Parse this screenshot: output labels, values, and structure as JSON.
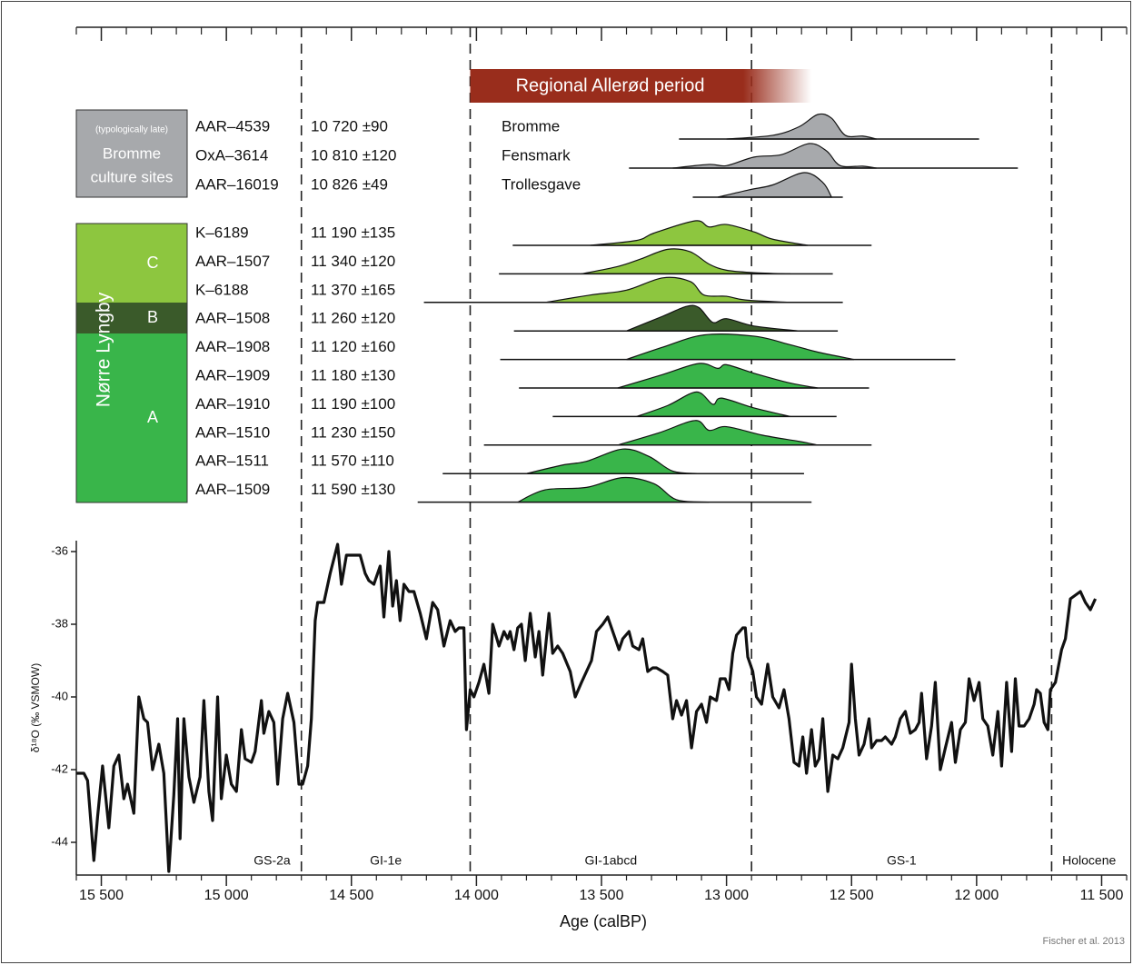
{
  "chart_data": {
    "type": "line",
    "x_label": "Age (calBP)",
    "y_label": "δ¹⁸O (‰ VSMOW)",
    "credit": "Fischer et al. 2013",
    "xlim": [
      15600,
      11400
    ],
    "xticks": [
      {
        "value": 15500,
        "label": "15 500"
      },
      {
        "value": 15000,
        "label": "15 000"
      },
      {
        "value": 14500,
        "label": "14 500"
      },
      {
        "value": 14000,
        "label": "14 000"
      },
      {
        "value": 13500,
        "label": "13 500"
      },
      {
        "value": 13000,
        "label": "13 000"
      },
      {
        "value": 12500,
        "label": "12 500"
      },
      {
        "value": 12000,
        "label": "12 000"
      },
      {
        "value": 11500,
        "label": "11 500"
      }
    ],
    "minor_xticks": [
      15600,
      15400,
      15300,
      15200,
      15100,
      14900,
      14800,
      14700,
      14600,
      14400,
      14300,
      14200,
      14100,
      13900,
      13800,
      13700,
      13600,
      13400,
      13300,
      13200,
      13100,
      12900,
      12800,
      12700,
      12600,
      12400,
      12300,
      12200,
      12100,
      11900,
      11800,
      11700,
      11600,
      11400
    ],
    "ylim": [
      -44.9,
      -35.7
    ],
    "yticks": [
      -36,
      -38,
      -40,
      -42,
      -44
    ],
    "color": "#111111",
    "x": [
      15600,
      15570,
      15555,
      15530,
      15515,
      15495,
      15470,
      15450,
      15430,
      15410,
      15395,
      15370,
      15350,
      15330,
      15315,
      15295,
      15270,
      15250,
      15230,
      15210,
      15195,
      15185,
      15170,
      15150,
      15130,
      15105,
      15090,
      15070,
      15055,
      15035,
      15020,
      15000,
      14980,
      14960,
      14940,
      14925,
      14900,
      14885,
      14860,
      14850,
      14830,
      14810,
      14795,
      14775,
      14755,
      14730,
      14710,
      14695,
      14675,
      14660,
      14645,
      14635,
      14610,
      14585,
      14555,
      14540,
      14520,
      14490,
      14465,
      14445,
      14430,
      14410,
      14385,
      14370,
      14350,
      14335,
      14320,
      14305,
      14290,
      14270,
      14250,
      14225,
      14200,
      14175,
      14155,
      14130,
      14105,
      14085,
      14070,
      14050,
      14040,
      14025,
      14010,
      13990,
      13970,
      13950,
      13935,
      13910,
      13890,
      13875,
      13865,
      13850,
      13835,
      13820,
      13805,
      13785,
      13765,
      13750,
      13735,
      13710,
      13695,
      13675,
      13655,
      13625,
      13605,
      13580,
      13560,
      13540,
      13520,
      13495,
      13475,
      13450,
      13430,
      13415,
      13390,
      13375,
      13350,
      13335,
      13315,
      13295,
      13280,
      13255,
      13235,
      13215,
      13200,
      13180,
      13160,
      13140,
      13120,
      13100,
      13080,
      13065,
      13040,
      13025,
      13005,
      12990,
      12975,
      12960,
      12935,
      12925,
      12915,
      12895,
      12880,
      12860,
      12835,
      12815,
      12790,
      12770,
      12750,
      12730,
      12710,
      12695,
      12680,
      12660,
      12645,
      12630,
      12615,
      12595,
      12575,
      12555,
      12535,
      12510,
      12500,
      12485,
      12470,
      12450,
      12430,
      12420,
      12400,
      12380,
      12365,
      12340,
      12325,
      12305,
      12285,
      12265,
      12245,
      12230,
      12220,
      12200,
      12180,
      12165,
      12145,
      12125,
      12100,
      12085,
      12065,
      12045,
      12030,
      12010,
      11990,
      11975,
      11955,
      11935,
      11915,
      11900,
      11880,
      11860,
      11845,
      11830,
      11810,
      11790,
      11770,
      11760,
      11745,
      11730,
      11715,
      11705,
      11685,
      11660,
      11645,
      11625,
      11605,
      11585,
      11565,
      11545,
      11525
    ],
    "values": [
      -42.1,
      -42.1,
      -42.3,
      -44.5,
      -43.3,
      -41.9,
      -43.6,
      -41.9,
      -41.6,
      -42.8,
      -42.4,
      -43.2,
      -40.0,
      -40.6,
      -40.7,
      -42.0,
      -41.3,
      -42.1,
      -44.8,
      -42.7,
      -40.6,
      -43.9,
      -40.6,
      -42.2,
      -42.9,
      -42.2,
      -40.1,
      -42.6,
      -43.4,
      -40.0,
      -42.8,
      -41.6,
      -42.4,
      -42.6,
      -40.9,
      -41.7,
      -41.8,
      -41.5,
      -40.1,
      -41.0,
      -40.4,
      -40.7,
      -42.4,
      -40.6,
      -39.9,
      -40.7,
      -42.4,
      -42.4,
      -41.9,
      -40.6,
      -37.9,
      -37.4,
      -37.4,
      -36.6,
      -35.8,
      -36.9,
      -36.1,
      -36.1,
      -36.1,
      -36.6,
      -36.8,
      -36.9,
      -36.4,
      -37.8,
      -36.0,
      -37.5,
      -36.8,
      -37.9,
      -36.9,
      -37.1,
      -37.1,
      -37.7,
      -38.4,
      -37.4,
      -37.6,
      -38.6,
      -37.9,
      -38.2,
      -38.1,
      -38.1,
      -40.9,
      -39.8,
      -40.0,
      -39.6,
      -39.1,
      -39.9,
      -38.0,
      -38.6,
      -38.2,
      -38.4,
      -38.2,
      -38.7,
      -38.1,
      -38.0,
      -39.0,
      -37.7,
      -38.9,
      -38.2,
      -39.4,
      -37.7,
      -38.8,
      -38.6,
      -38.8,
      -39.3,
      -40.0,
      -39.6,
      -39.3,
      -39.0,
      -38.2,
      -38.0,
      -37.8,
      -38.3,
      -38.7,
      -38.4,
      -38.2,
      -38.6,
      -38.7,
      -38.4,
      -39.3,
      -39.2,
      -39.2,
      -39.3,
      -39.4,
      -40.6,
      -40.1,
      -40.5,
      -40.1,
      -41.4,
      -40.4,
      -40.2,
      -40.7,
      -40.0,
      -40.1,
      -39.5,
      -39.5,
      -39.8,
      -38.8,
      -38.3,
      -38.1,
      -38.1,
      -38.9,
      -39.3,
      -40.0,
      -40.2,
      -39.1,
      -40.0,
      -40.3,
      -39.8,
      -40.6,
      -41.8,
      -41.9,
      -41.1,
      -42.1,
      -40.9,
      -41.9,
      -41.7,
      -40.6,
      -42.6,
      -41.6,
      -41.7,
      -41.4,
      -40.7,
      -39.1,
      -40.6,
      -41.6,
      -41.3,
      -40.6,
      -41.4,
      -41.2,
      -41.2,
      -41.1,
      -41.3,
      -41.1,
      -40.6,
      -40.4,
      -41.0,
      -40.9,
      -40.7,
      -39.9,
      -41.7,
      -40.8,
      -39.6,
      -42.0,
      -41.4,
      -40.7,
      -41.8,
      -40.9,
      -40.7,
      -39.5,
      -40.1,
      -39.6,
      -40.6,
      -40.8,
      -41.6,
      -40.4,
      -41.9,
      -39.6,
      -41.5,
      -39.5,
      -40.8,
      -40.8,
      -40.6,
      -40.2,
      -39.8,
      -39.9,
      -40.7,
      -40.9,
      -39.8,
      -39.6,
      -38.7,
      -38.4,
      -37.3,
      -37.2,
      -37.1,
      -37.4,
      -37.6,
      -37.3
    ],
    "boundaries": [
      14700,
      14025,
      12900,
      11700
    ],
    "zones": [
      "GS-2a",
      "GI-1e",
      "GI-1abcd",
      "GS-1",
      "Holocene"
    ],
    "period": {
      "label": "Regional Allerød period",
      "start": 14025,
      "end": 12660,
      "color": "#992d1c"
    },
    "bromme_group": {
      "note": "(typologically late)",
      "lines": [
        "Bromme",
        "culture sites"
      ],
      "color": "#a7a9ac"
    },
    "lyngby_group": {
      "name": "Nørre Lyngby",
      "phases": [
        "C",
        "B",
        "A"
      ],
      "colors": [
        "#8dc63f",
        "#3a5a2a",
        "#39b54a"
      ]
    },
    "samples": [
      {
        "code": "AAR–4539",
        "date": "10 720 ±90",
        "site": "Bromme",
        "color": "#a7a9ac",
        "range": [
          13190,
          11990
        ],
        "profile_x": [
          13000,
          12815,
          12710,
          12635,
          12580,
          12525,
          12455,
          12400
        ],
        "profile": [
          0,
          0.15,
          0.5,
          1,
          0.85,
          0.15,
          0.12,
          0
        ]
      },
      {
        "code": "OxA–3614",
        "date": "10 810 ±120",
        "site": "Fensmark",
        "color": "#a7a9ac",
        "range": [
          13390,
          11835
        ],
        "profile_x": [
          13215,
          13070,
          13000,
          12890,
          12780,
          12670,
          12600,
          12545,
          12455,
          12400
        ],
        "profile": [
          0,
          0.15,
          0.1,
          0.45,
          0.55,
          1,
          0.7,
          0.1,
          0.08,
          0
        ]
      },
      {
        "code": "AAR–16019",
        "date": "10 826 ±49",
        "site": "Trollesgave",
        "color": "#a7a9ac",
        "range": [
          13135,
          12535
        ],
        "profile_x": [
          13035,
          12910,
          12815,
          12690,
          12615,
          12580
        ],
        "profile": [
          0,
          0.3,
          0.5,
          1,
          0.6,
          0
        ]
      },
      {
        "code": "K–6189",
        "date": "11 190 ±135",
        "color": "#8dc63f",
        "range": [
          13855,
          12420
        ],
        "profile_x": [
          13545,
          13360,
          13290,
          13125,
          13070,
          13000,
          12890,
          12815,
          12675
        ],
        "profile": [
          0,
          0.2,
          0.5,
          1,
          0.75,
          0.85,
          0.55,
          0.25,
          0
        ]
      },
      {
        "code": "AAR–1507",
        "date": "11 340 ±120",
        "color": "#8dc63f",
        "range": [
          13910,
          12575
        ],
        "profile_x": [
          13580,
          13435,
          13345,
          13235,
          13145,
          13070,
          13000,
          12890,
          12745
        ],
        "profile": [
          0,
          0.3,
          0.6,
          1,
          0.9,
          0.4,
          0.15,
          0.05,
          0
        ]
      },
      {
        "code": "K–6188",
        "date": "11 370 ±165",
        "color": "#8dc63f",
        "range": [
          14210,
          12535
        ],
        "profile_x": [
          13725,
          13545,
          13400,
          13255,
          13145,
          13090,
          13000,
          12925,
          12745
        ],
        "profile": [
          0,
          0.3,
          0.5,
          1,
          0.85,
          0.3,
          0.25,
          0.1,
          0
        ]
      },
      {
        "code": "AAR–1508",
        "date": "11 260 ±120",
        "color": "#3a5a2a",
        "range": [
          13850,
          12555
        ],
        "profile_x": [
          13400,
          13255,
          13160,
          13110,
          13055,
          13000,
          12890,
          12710
        ],
        "profile": [
          0,
          0.6,
          1,
          0.95,
          0.35,
          0.5,
          0.2,
          0
        ]
      },
      {
        "code": "AAR–1908",
        "date": "11 120 ±160",
        "color": "#39b54a",
        "range": [
          13905,
          12085
        ],
        "profile_x": [
          13400,
          13255,
          13090,
          12890,
          12745,
          12635,
          12490
        ],
        "profile": [
          0,
          0.5,
          1,
          0.95,
          0.6,
          0.3,
          0
        ]
      },
      {
        "code": "AAR–1909",
        "date": "11 180 ±130",
        "color": "#39b54a",
        "range": [
          13830,
          12430
        ],
        "profile_x": [
          13435,
          13255,
          13110,
          13035,
          13000,
          12890,
          12745,
          12635
        ],
        "profile": [
          0,
          0.55,
          1,
          0.8,
          0.95,
          0.6,
          0.2,
          0
        ]
      },
      {
        "code": "AAR–1910",
        "date": "11 190 ±100",
        "color": "#39b54a",
        "range": [
          13695,
          12560
        ],
        "profile_x": [
          13360,
          13235,
          13120,
          13055,
          13020,
          12890,
          12745
        ],
        "profile": [
          0,
          0.45,
          1,
          0.5,
          0.75,
          0.35,
          0
        ]
      },
      {
        "code": "AAR–1510",
        "date": "11 230 ±150",
        "color": "#39b54a",
        "range": [
          13970,
          12420
        ],
        "profile_x": [
          13435,
          13270,
          13125,
          13070,
          13000,
          12855,
          12710,
          12635
        ],
        "profile": [
          0,
          0.5,
          1,
          0.6,
          0.75,
          0.4,
          0.15,
          0
        ]
      },
      {
        "code": "AAR–1511",
        "date": "11 570 ±110",
        "color": "#39b54a",
        "range": [
          14135,
          12690
        ],
        "profile_x": [
          13800,
          13655,
          13560,
          13415,
          13310,
          13215,
          13110
        ],
        "profile": [
          0,
          0.35,
          0.5,
          1,
          0.7,
          0.1,
          0
        ]
      },
      {
        "code": "AAR–1509",
        "date": "11 590 ±130",
        "color": "#39b54a",
        "range": [
          14235,
          12660
        ],
        "profile_x": [
          13835,
          13725,
          13560,
          13415,
          13290,
          13200,
          13070
        ],
        "profile": [
          0,
          0.5,
          0.6,
          1,
          0.75,
          0.1,
          0
        ]
      }
    ]
  }
}
